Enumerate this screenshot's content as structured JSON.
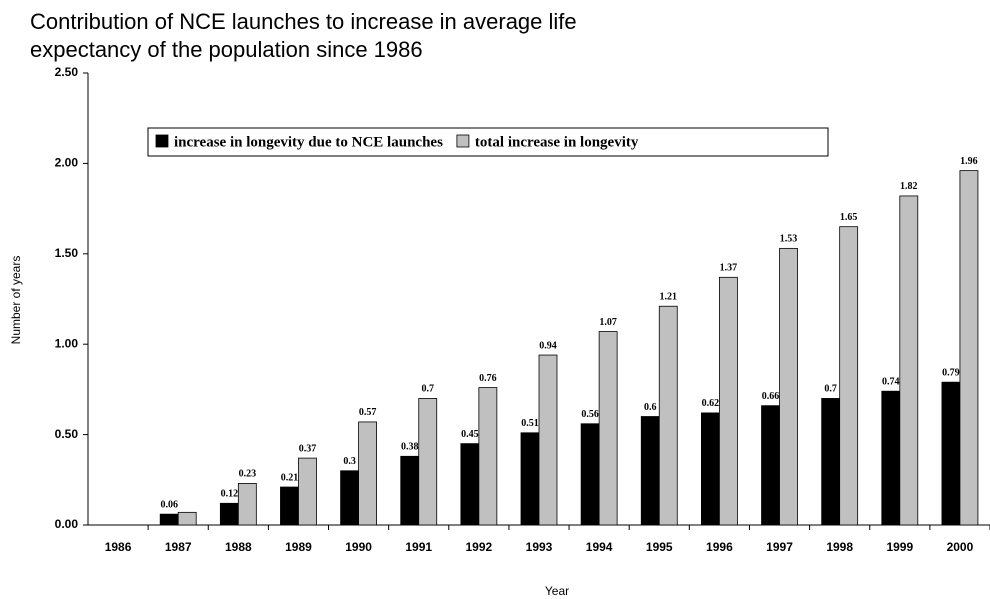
{
  "chart_data": {
    "type": "bar",
    "title": "Contribution of NCE launches to increase in average life expectancy of the population since 1986",
    "x_label": "Year",
    "y_label": "Number of years",
    "categories": [
      "1986",
      "1987",
      "1988",
      "1989",
      "1990",
      "1991",
      "1992",
      "1993",
      "1994",
      "1995",
      "1996",
      "1997",
      "1998",
      "1999",
      "2000"
    ],
    "series": [
      {
        "name": "increase in longevity due to NCE launches",
        "color": "#000000",
        "values": [
          null,
          0.06,
          0.12,
          0.21,
          0.3,
          0.38,
          0.45,
          0.51,
          0.56,
          0.6,
          0.62,
          0.66,
          0.7,
          0.74,
          0.79
        ],
        "value_labels": [
          null,
          "0.06",
          "0.12",
          "0.21",
          "0.3",
          "0.38",
          "0.45",
          "0.51",
          "0.56",
          "0.6",
          "0.62",
          "0.66",
          "0.7",
          "0.74",
          "0.79"
        ]
      },
      {
        "name": "total increase in longevity",
        "color": "#c0c0c0",
        "values": [
          null,
          0.07,
          0.23,
          0.37,
          0.57,
          0.7,
          0.76,
          0.94,
          1.07,
          1.21,
          1.37,
          1.53,
          1.65,
          1.82,
          1.96
        ],
        "value_labels": [
          null,
          null,
          "0.23",
          "0.37",
          "0.57",
          "0.7",
          "0.76",
          "0.94",
          "1.07",
          "1.21",
          "1.37",
          "1.53",
          "1.65",
          "1.82",
          "1.96"
        ]
      }
    ],
    "ylim": [
      0,
      2.5
    ],
    "yticks": [
      {
        "value": 0,
        "label": "0.00"
      },
      {
        "value": 0.5,
        "label": "0.50"
      },
      {
        "value": 1,
        "label": "1.00"
      },
      {
        "value": 1.5,
        "label": "1.50"
      },
      {
        "value": 2,
        "label": "2.00"
      },
      {
        "value": 2.5,
        "label": "2.50"
      }
    ],
    "grid": false,
    "legend": "top"
  }
}
